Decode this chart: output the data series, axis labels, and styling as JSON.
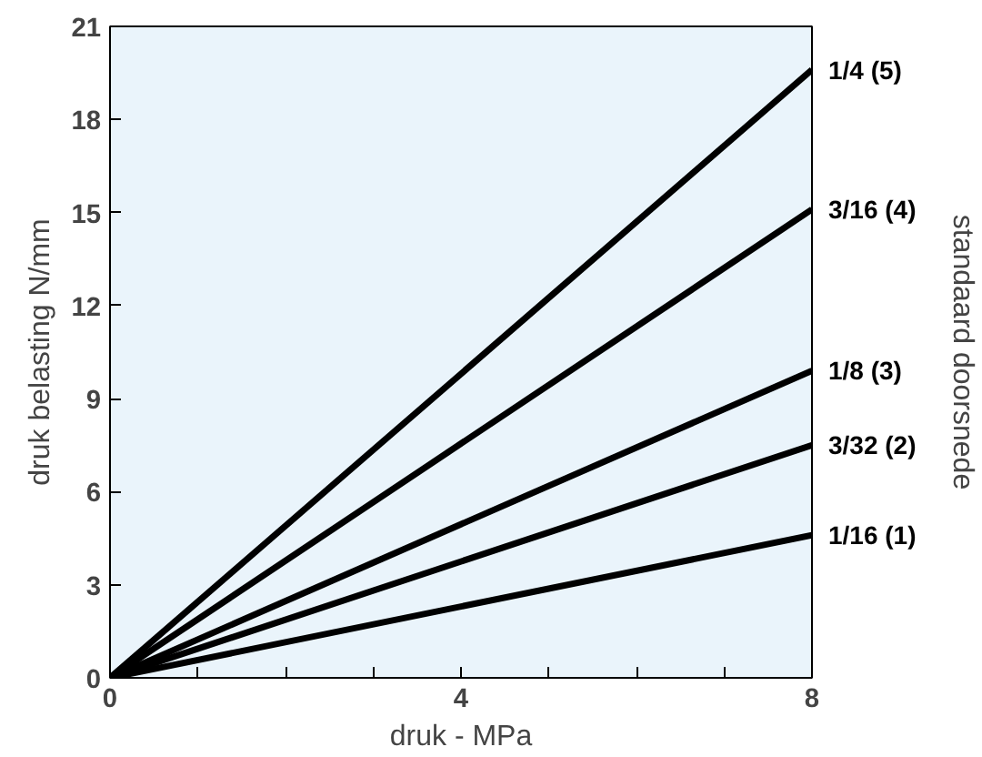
{
  "chart_data": {
    "type": "line",
    "xlabel": "druk - MPa",
    "ylabel": "druk belasting N/mm",
    "y2label": "standaard doorsnede",
    "x": [
      0,
      8
    ],
    "series": [
      {
        "name": "1/4   (5)",
        "color": "#000000",
        "values": [
          0,
          19.6
        ]
      },
      {
        "name": "3/16 (4)",
        "color": "#000000",
        "values": [
          0,
          15.1
        ]
      },
      {
        "name": "1/8   (3)",
        "color": "#000000",
        "values": [
          0,
          9.9
        ]
      },
      {
        "name": "3/32 (2)",
        "color": "#000000",
        "values": [
          0,
          7.5
        ]
      },
      {
        "name": "1/16 (1)",
        "color": "#000000",
        "values": [
          0,
          4.6
        ]
      }
    ],
    "xlim": [
      0,
      8
    ],
    "ylim": [
      0,
      21
    ],
    "xticks": [
      0,
      {
        "value": 1,
        "label": null
      },
      {
        "value": 2,
        "label": null
      },
      {
        "value": 3,
        "label": null
      },
      4,
      {
        "value": 5,
        "label": null
      },
      {
        "value": 6,
        "label": null
      },
      {
        "value": 7,
        "label": null
      },
      8
    ],
    "yticks": [
      0,
      3,
      6,
      9,
      12,
      15,
      18,
      21
    ],
    "grid": false,
    "marker": "none",
    "line_style": "solid"
  }
}
